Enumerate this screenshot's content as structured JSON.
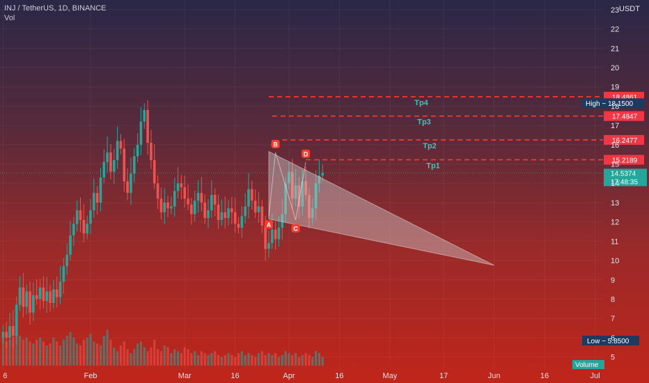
{
  "header": {
    "symbol_line": "INJ / TetherUS, 1D, BINANCE",
    "vol_label": "Vol"
  },
  "price_axis": {
    "currency": "USDT"
  },
  "colors": {
    "up": "#26a69a",
    "down": "#ef5350",
    "level": "#ff3b30",
    "tp": "#43c4b4",
    "pattern": "#c8c8c8"
  },
  "chart_data": {
    "type": "candlestick",
    "ylim": [
      4.3,
      23.5
    ],
    "y_ticks": [
      5,
      6,
      7,
      8,
      9,
      10,
      11,
      12,
      13,
      14,
      15,
      16,
      17,
      18,
      19,
      20,
      21,
      22,
      23
    ],
    "x_tick_labels": [
      {
        "label": "6",
        "day": 6
      },
      {
        "label": "Feb",
        "day": 32
      },
      {
        "label": "Mar",
        "day": 60
      },
      {
        "label": "16",
        "day": 75
      },
      {
        "label": "Apr",
        "day": 91
      },
      {
        "label": "16",
        "day": 106
      },
      {
        "label": "May",
        "day": 121
      },
      {
        "label": "17",
        "day": 137
      },
      {
        "label": "Jun",
        "day": 152
      },
      {
        "label": "16",
        "day": 167
      },
      {
        "label": "Jul",
        "day": 182
      }
    ],
    "levels": [
      {
        "label": "18.4861",
        "value": 18.4861,
        "tp": "Tp4",
        "start_day": 85
      },
      {
        "label": "17.4847",
        "value": 17.4847,
        "tp": "Tp3",
        "start_day": 86
      },
      {
        "label": "16.2477",
        "value": 16.2477,
        "tp": "Tp2",
        "start_day": 89
      },
      {
        "label": "15.2189",
        "value": 15.2189,
        "tp": "Tp1",
        "start_day": 96
      }
    ],
    "last_price": {
      "value": 14.5374,
      "price_label": "14.5374",
      "countdown": "17:48:35"
    },
    "high": {
      "label": "High",
      "value_label": "18.1500",
      "value": 18.15
    },
    "low": {
      "label": "Low",
      "value_label": "5.8500",
      "value": 5.85
    },
    "volume_label": "Volume",
    "pattern_points": [
      {
        "label": "A",
        "day": 85,
        "price": 12.3
      },
      {
        "label": "B",
        "day": 87,
        "price": 15.6
      },
      {
        "label": "C",
        "day": 93,
        "price": 12.1
      },
      {
        "label": "D",
        "day": 96,
        "price": 15.1
      }
    ],
    "triangle": [
      {
        "day": 85,
        "price": 15.65
      },
      {
        "day": 152,
        "price": 9.75
      },
      {
        "day": 85,
        "price": 12.15
      }
    ],
    "closes": [
      6.3,
      6.0,
      6.6,
      6.1,
      7.7,
      8.6,
      7.6,
      8.4,
      7.3,
      8.2,
      8.0,
      8.6,
      7.9,
      8.4,
      7.8,
      8.5,
      8.1,
      8.9,
      9.7,
      10.3,
      11.3,
      11.9,
      12.6,
      12.1,
      11.4,
      11.9,
      12.6,
      13.5,
      13.0,
      14.3,
      15.1,
      15.6,
      14.6,
      15.2,
      16.2,
      15.8,
      14.1,
      13.5,
      14.5,
      15.4,
      16.0,
      17.2,
      17.8,
      16.1,
      15.2,
      14.0,
      13.2,
      12.5,
      13.0,
      12.7,
      12.8,
      13.6,
      14.0,
      13.8,
      13.2,
      12.9,
      12.4,
      13.1,
      13.5,
      13.0,
      12.2,
      12.6,
      13.4,
      12.9,
      12.1,
      12.5,
      12.2,
      12.7,
      12.5,
      11.9,
      11.7,
      12.3,
      12.8,
      13.7,
      13.1,
      12.5,
      12.8,
      11.8,
      10.6,
      10.9,
      11.6,
      11.1,
      11.7,
      12.4,
      14.0,
      14.6,
      13.2,
      13.9,
      12.8,
      14.1,
      13.4,
      12.2,
      12.7,
      14.0,
      14.4,
      14.5374
    ],
    "volumes": [
      6.3,
      5.8,
      5.9,
      6.0,
      6.2,
      6.1,
      5.9,
      6.0,
      5.8,
      5.7,
      5.9,
      6.0,
      5.8,
      5.6,
      5.7,
      6.0,
      5.8,
      5.6,
      5.9,
      6.1,
      6.3,
      6.0,
      5.7,
      5.6,
      5.9,
      6.0,
      6.2,
      5.8,
      5.7,
      5.6,
      6.1,
      6.4,
      5.9,
      5.5,
      5.3,
      5.6,
      5.8,
      5.4,
      5.2,
      5.4,
      5.7,
      5.8,
      5.5,
      5.3,
      5.5,
      5.9,
      5.4,
      5.3,
      5.6,
      5.5,
      5.2,
      5.4,
      5.3,
      5.2,
      5.5,
      5.4,
      5.2,
      5.3,
      5.1,
      5.3,
      5.2,
      5.1,
      5.2,
      5.3,
      5.1,
      5.0,
      5.1,
      5.2,
      5.1,
      5.0,
      5.2,
      5.3,
      5.1,
      5.2,
      5.1,
      5.0,
      5.2,
      5.3,
      5.1,
      5.2,
      5.1,
      5.2,
      5.0,
      5.1,
      5.3,
      5.2,
      5.1,
      5.2,
      5.0,
      5.1,
      5.2,
      5.1,
      5.0,
      5.3,
      5.2,
      5.0
    ]
  }
}
